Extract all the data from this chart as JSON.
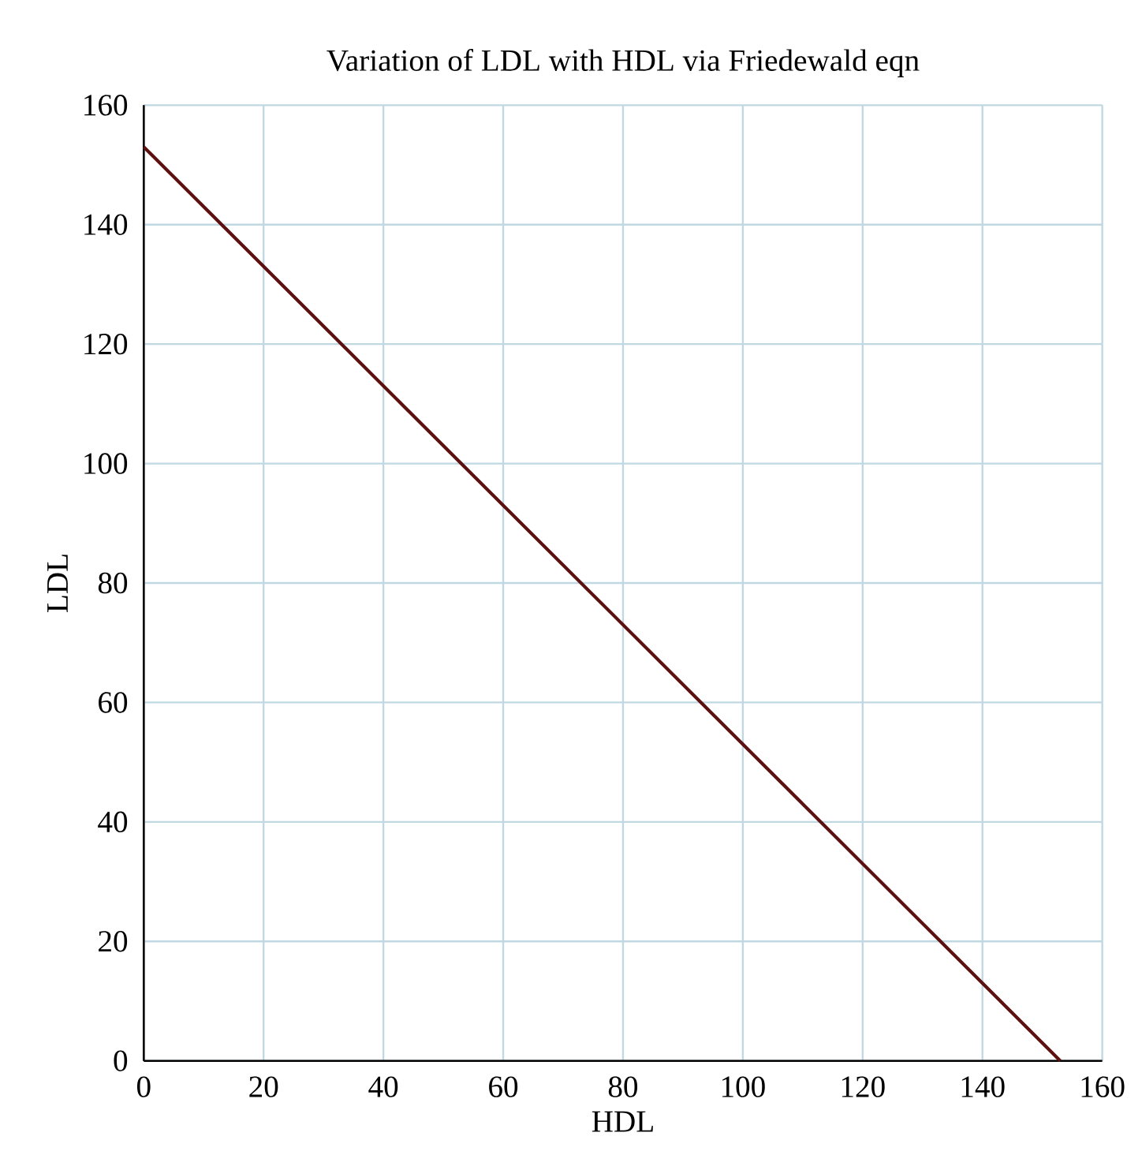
{
  "chart_data": {
    "type": "line",
    "title": "Variation of LDL with HDL via Friedewald eqn",
    "xlabel": "HDL",
    "ylabel": "LDL",
    "x": [
      0,
      153
    ],
    "series": [
      {
        "color": "#5c1010",
        "values": [
          153,
          0
        ]
      }
    ],
    "xlim": [
      0,
      160
    ],
    "ylim": [
      0,
      160
    ],
    "xticks": [
      0,
      20,
      40,
      60,
      80,
      100,
      120,
      140,
      160
    ],
    "yticks": [
      0,
      20,
      40,
      60,
      80,
      100,
      120,
      140,
      160
    ],
    "grid": true,
    "marker": "none",
    "line_style": "solid"
  }
}
